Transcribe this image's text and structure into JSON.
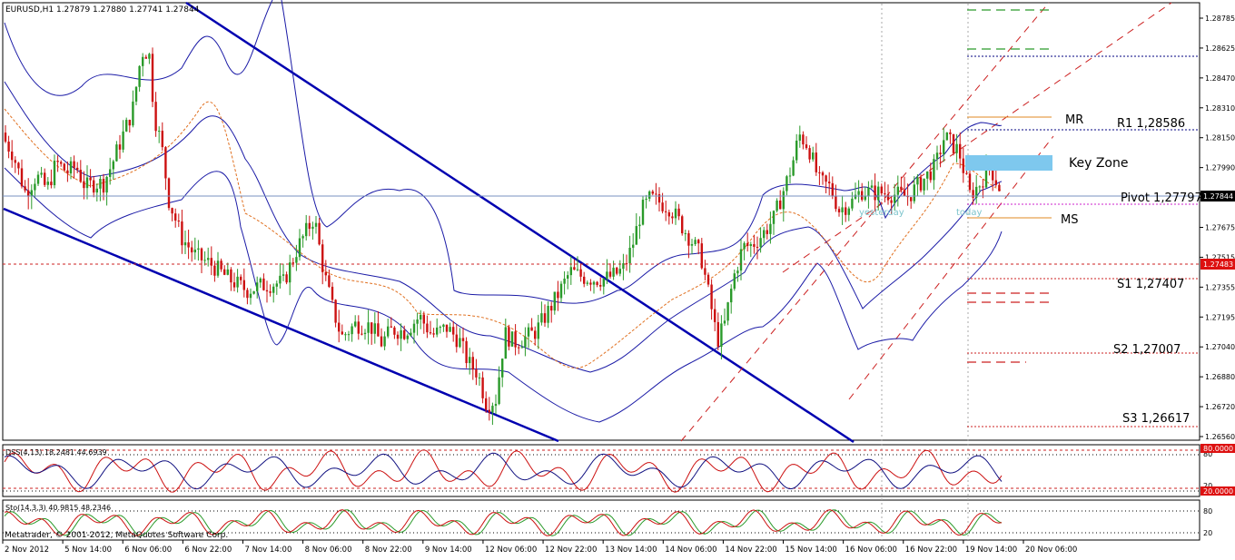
{
  "chart_data": {
    "type": "candlestick",
    "symbol_header": "EURUSD,H1  1.27879 1.27880 1.27741 1.27844",
    "price_axis": {
      "ticks": [
        "1.28785",
        "1.28625",
        "1.28470",
        "1.28310",
        "1.28150",
        "1.27990",
        "1.27835",
        "1.27675",
        "1.27515",
        "1.27355",
        "1.27195",
        "1.27040",
        "1.26880",
        "1.26720",
        "1.26560"
      ],
      "ylim": [
        1.2656,
        1.2879
      ]
    },
    "time_axis": {
      "ticks": [
        "2 Nov 2012",
        "5 Nov 14:00",
        "6 Nov 06:00",
        "6 Nov 22:00",
        "7 Nov 14:00",
        "8 Nov 06:00",
        "8 Nov 22:00",
        "9 Nov 14:00",
        "12 Nov 06:00",
        "12 Nov 22:00",
        "13 Nov 14:00",
        "14 Nov 06:00",
        "14 Nov 22:00",
        "15 Nov 14:00",
        "16 Nov 06:00",
        "16 Nov 22:00",
        "19 Nov 14:00",
        "20 Nov 06:00"
      ]
    },
    "current_price": {
      "label": "1.27844",
      "value": 1.27844
    },
    "marked_level": {
      "label": "1.27483",
      "value": 1.27483
    },
    "pivot_levels": [
      {
        "label": "R1 1,28586",
        "value": 1.28586
      },
      {
        "label": "Pivot 1,27797",
        "value": 1.27797
      },
      {
        "label": "S1 1,27407",
        "value": 1.27407
      },
      {
        "label": "S2 1,27007",
        "value": 1.27007
      },
      {
        "label": "S3 1,26617",
        "value": 1.26617
      }
    ],
    "annotations": {
      "mr": "MR",
      "ms": "MS",
      "key_zone": "Key Zone",
      "yesterday": "yesterday",
      "today": "today"
    },
    "dss_indicator": {
      "label": "DSS(4,13) 18.2481 44.6939",
      "axis_ticks": [
        "80",
        "20"
      ],
      "level_labels": [
        "80.0000",
        "20.0000"
      ],
      "levels": [
        80,
        20
      ]
    },
    "stochastic": {
      "label": "Sto(14,3,3) 40.9815 48.2346",
      "axis_ticks": [
        "80",
        "20"
      ],
      "levels": [
        80,
        20
      ]
    },
    "copyright": "Metatrader, © 2001-2012, MetaQuotes Software Corp.",
    "price_path": [
      [
        0,
        1.2818
      ],
      [
        14,
        1.2807
      ],
      [
        28,
        1.2786
      ],
      [
        40,
        1.2795
      ],
      [
        52,
        1.2788
      ],
      [
        62,
        1.2802
      ],
      [
        74,
        1.2797
      ],
      [
        84,
        1.28
      ],
      [
        94,
        1.2789
      ],
      [
        104,
        1.2791
      ],
      [
        114,
        1.2791
      ],
      [
        124,
        1.2802
      ],
      [
        134,
        1.2815
      ],
      [
        146,
        1.283
      ],
      [
        156,
        1.2861
      ],
      [
        164,
        1.2861
      ],
      [
        170,
        1.2827
      ],
      [
        178,
        1.2811
      ],
      [
        186,
        1.2782
      ],
      [
        200,
        1.2762
      ],
      [
        216,
        1.2752
      ],
      [
        232,
        1.2748
      ],
      [
        252,
        1.274
      ],
      [
        272,
        1.2734
      ],
      [
        292,
        1.2737
      ],
      [
        312,
        1.2738
      ],
      [
        328,
        1.2757
      ],
      [
        346,
        1.2773
      ],
      [
        356,
        1.2745
      ],
      [
        366,
        1.2725
      ],
      [
        376,
        1.2709
      ],
      [
        392,
        1.2716
      ],
      [
        408,
        1.2715
      ],
      [
        420,
        1.2706
      ],
      [
        432,
        1.2713
      ],
      [
        446,
        1.2712
      ],
      [
        462,
        1.272
      ],
      [
        476,
        1.271
      ],
      [
        492,
        1.2714
      ],
      [
        506,
        1.2707
      ],
      [
        516,
        1.2695
      ],
      [
        526,
        1.269
      ],
      [
        536,
        1.2673
      ],
      [
        546,
        1.2676
      ],
      [
        556,
        1.2711
      ],
      [
        566,
        1.2706
      ],
      [
        576,
        1.2708
      ],
      [
        590,
        1.2712
      ],
      [
        604,
        1.2723
      ],
      [
        616,
        1.2733
      ],
      [
        628,
        1.2744
      ],
      [
        642,
        1.2741
      ],
      [
        654,
        1.274
      ],
      [
        666,
        1.274
      ],
      [
        676,
        1.2742
      ],
      [
        686,
        1.2745
      ],
      [
        696,
        1.2757
      ],
      [
        706,
        1.2776
      ],
      [
        716,
        1.2783
      ],
      [
        726,
        1.2781
      ],
      [
        738,
        1.2778
      ],
      [
        750,
        1.2769
      ],
      [
        762,
        1.276
      ],
      [
        772,
        1.2752
      ],
      [
        782,
        1.2728
      ],
      [
        790,
        1.2707
      ],
      [
        798,
        1.2716
      ],
      [
        808,
        1.2741
      ],
      [
        818,
        1.2757
      ],
      [
        828,
        1.2758
      ],
      [
        840,
        1.2764
      ],
      [
        852,
        1.2772
      ],
      [
        862,
        1.2786
      ],
      [
        872,
        1.28
      ],
      [
        880,
        1.2817
      ],
      [
        890,
        1.2811
      ],
      [
        902,
        1.2792
      ],
      [
        914,
        1.2789
      ],
      [
        924,
        1.2777
      ],
      [
        938,
        1.2781
      ],
      [
        948,
        1.2787
      ],
      [
        960,
        1.2786
      ],
      [
        972,
        1.2786
      ]
    ]
  }
}
